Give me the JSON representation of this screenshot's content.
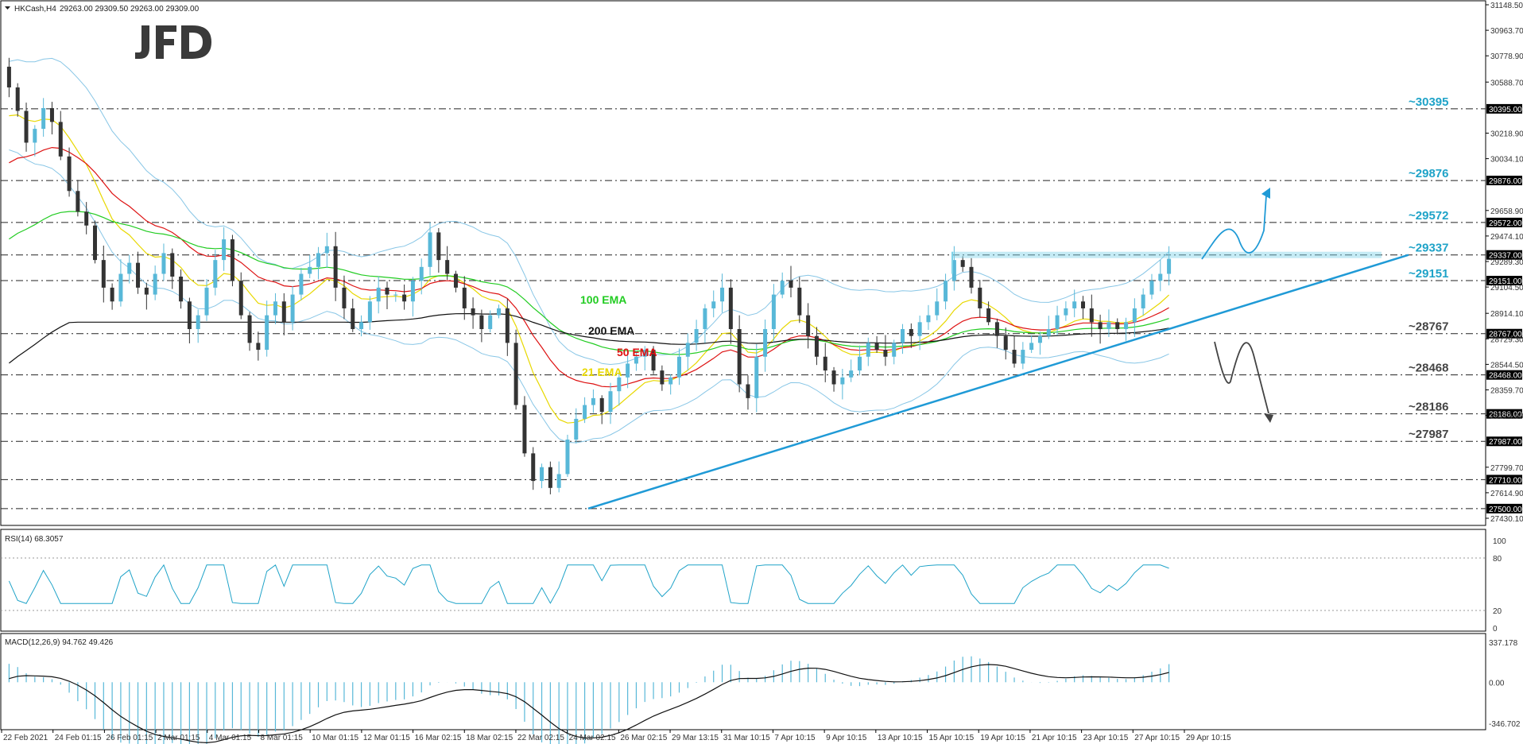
{
  "header": {
    "symbol": "HKCash,H4",
    "ohlc": "29263.00 29309.50 29263.00 29309.00"
  },
  "brand": "JFD",
  "chart_data": {
    "type": "candlestick",
    "price_ylim": [
      27430.1,
      31148.5
    ],
    "price_ticks": [
      31148.5,
      30963.7,
      30778.9,
      30588.7,
      30395.0,
      30218.9,
      30034.1,
      29876.0,
      29658.9,
      29572.0,
      29474.1,
      29337.0,
      29289.3,
      29151.0,
      29104.5,
      28914.1,
      28767.0,
      28729.3,
      28544.5,
      28468.0,
      28359.7,
      28186.0,
      28174.9,
      27987.0,
      27799.7,
      27710.0,
      27614.9,
      27500.0,
      27430.1
    ],
    "highlighted_ticks": [
      30395.0,
      29876.0,
      29572.0,
      29337.0,
      29151.0,
      28767.0,
      28468.0,
      28186.0,
      27987.0,
      27710.0,
      27500.0
    ],
    "levels": [
      {
        "label": "~30395",
        "value": 30395,
        "color": "#1fa3c8"
      },
      {
        "label": "~29876",
        "value": 29876,
        "color": "#1fa3c8"
      },
      {
        "label": "~29572",
        "value": 29572,
        "color": "#1fa3c8"
      },
      {
        "label": "~29337",
        "value": 29337,
        "color": "#1fa3c8"
      },
      {
        "label": "~29151",
        "value": 29151,
        "color": "#1fa3c8"
      },
      {
        "label": "~28767",
        "value": 28767,
        "color": "#444444"
      },
      {
        "label": "~28468",
        "value": 28468,
        "color": "#444444"
      },
      {
        "label": "~28186",
        "value": 28186,
        "color": "#444444"
      },
      {
        "label": "~27987",
        "value": 27987,
        "color": "#444444"
      },
      {
        "label": "",
        "value": 27710,
        "color": "#444444"
      },
      {
        "label": "",
        "value": 27500,
        "color": "#444444"
      }
    ],
    "x_labels": [
      "22 Feb 2021",
      "24 Feb 01:15",
      "26 Feb 01:15",
      "2 Mar 01:15",
      "4 Mar 01:15",
      "8 Mar 01:15",
      "10 Mar 01:15",
      "12 Mar 01:15",
      "16 Mar 02:15",
      "18 Mar 02:15",
      "22 Mar 02:15",
      "24 Mar 02:15",
      "26 Mar 02:15",
      "29 Mar 13:15",
      "31 Mar 10:15",
      "7 Apr 10:15",
      "9 Apr 10:15",
      "13 Apr 10:15",
      "15 Apr 10:15",
      "19 Apr 10:15",
      "21 Apr 10:15",
      "23 Apr 10:15",
      "27 Apr 10:15",
      "29 Apr 10:15"
    ],
    "close_path": [
      30550,
      30380,
      30150,
      30250,
      30400,
      30300,
      30050,
      29800,
      29650,
      29550,
      29300,
      29100,
      29000,
      29200,
      29280,
      29100,
      29050,
      29200,
      29350,
      29180,
      29000,
      28800,
      28900,
      29100,
      29300,
      29450,
      29150,
      28900,
      28700,
      28650,
      28900,
      29000,
      28850,
      29050,
      29200,
      29250,
      29350,
      29400,
      29100,
      28950,
      28800,
      28850,
      29000,
      29100,
      29050,
      29050,
      29000,
      29150,
      29250,
      29500,
      29300,
      29200,
      29100,
      28950,
      28900,
      28800,
      28900,
      28950,
      28700,
      28250,
      27900,
      27700,
      27800,
      27650,
      27750,
      28000,
      28150,
      28250,
      28300,
      28200,
      28350,
      28450,
      28550,
      28600,
      28650,
      28500,
      28400,
      28450,
      28600,
      28700,
      28800,
      28950,
      29000,
      29100,
      28800,
      28400,
      28300,
      28600,
      28800,
      29050,
      29150,
      29100,
      28900,
      28750,
      28600,
      28500,
      28400,
      28450,
      28500,
      28600,
      28700,
      28650,
      28600,
      28700,
      28800,
      28750,
      28850,
      28900,
      29000,
      29150,
      29300,
      29250,
      29100,
      28950,
      28850,
      28750,
      28650,
      28550,
      28650,
      28700,
      28750,
      28800,
      28900,
      28950,
      29000,
      28950,
      28850,
      28800,
      28850,
      28800,
      28850,
      28950,
      29050,
      29150,
      29200,
      29309
    ],
    "ema_labels": [
      {
        "label": "100 EMA",
        "color": "#22cc22"
      },
      {
        "label": "200 EMA",
        "color": "#111111"
      },
      {
        "label": "50 EMA",
        "color": "#dd1111"
      },
      {
        "label": "21 EMA",
        "color": "#e8d800"
      }
    ],
    "colors": {
      "bull": "#58b8d8",
      "bear": "#333333",
      "trend": "#1f9ad6",
      "band": "#88c6e6",
      "zone": "#7fd3e8",
      "up_arrow": "#1f9ad6",
      "down_arrow": "#444444"
    },
    "rsi": {
      "label": "RSI(14) 68.3057",
      "ylim": [
        0,
        100
      ],
      "ticks": [
        100,
        80,
        20,
        0
      ],
      "last": 68.3057
    },
    "macd": {
      "label": "MACD(12,26,9) 94.762 49.426",
      "ticks": [
        337.178,
        0.0,
        -346.702
      ],
      "ylim": [
        -346.702,
        337.178
      ]
    }
  }
}
